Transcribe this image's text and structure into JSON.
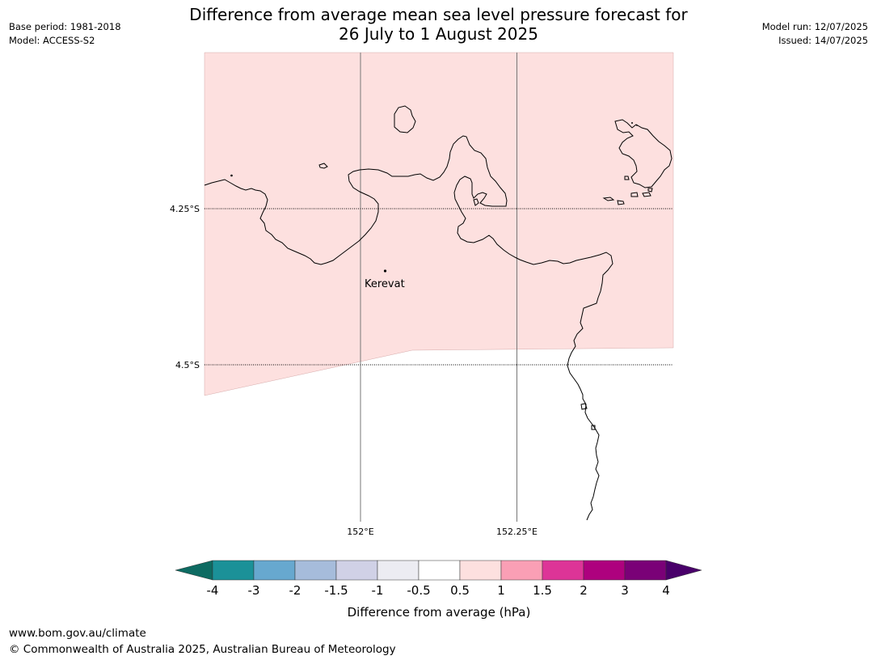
{
  "title_line1": "Difference from average mean sea level pressure forecast for",
  "title_line2": "26 July to 1 August 2025",
  "base_period": "Base period: 1981-2018",
  "model": "Model: ACCESS-S2",
  "model_run": "Model run: 12/07/2025",
  "issued": "Issued: 14/07/2025",
  "lat_labels": [
    "4.25°S",
    "4.5°S"
  ],
  "lon_labels": [
    "152°E",
    "152.25°E"
  ],
  "place_label": "Kerevat",
  "colorbar": {
    "title": "Difference from average (hPa)",
    "ticks": [
      "-4",
      "-3",
      "-2",
      "-1.5",
      "-1",
      "-0.5",
      "0.5",
      "1",
      "1.5",
      "2",
      "3",
      "4"
    ],
    "colors": [
      "#0e6b62",
      "#1b9198",
      "#67a8cf",
      "#a6bcdb",
      "#d0d1e6",
      "#ececf2",
      "#ffffff",
      "#fde0df",
      "#fa9fb5",
      "#dd3497",
      "#ae017e",
      "#7a0177",
      "#49006a"
    ]
  },
  "region_color": "#fde0df",
  "footer_url": "www.bom.gov.au/climate",
  "footer_copyright": "© Commonwealth of Australia 2025, Australian Bureau of Meteorology"
}
